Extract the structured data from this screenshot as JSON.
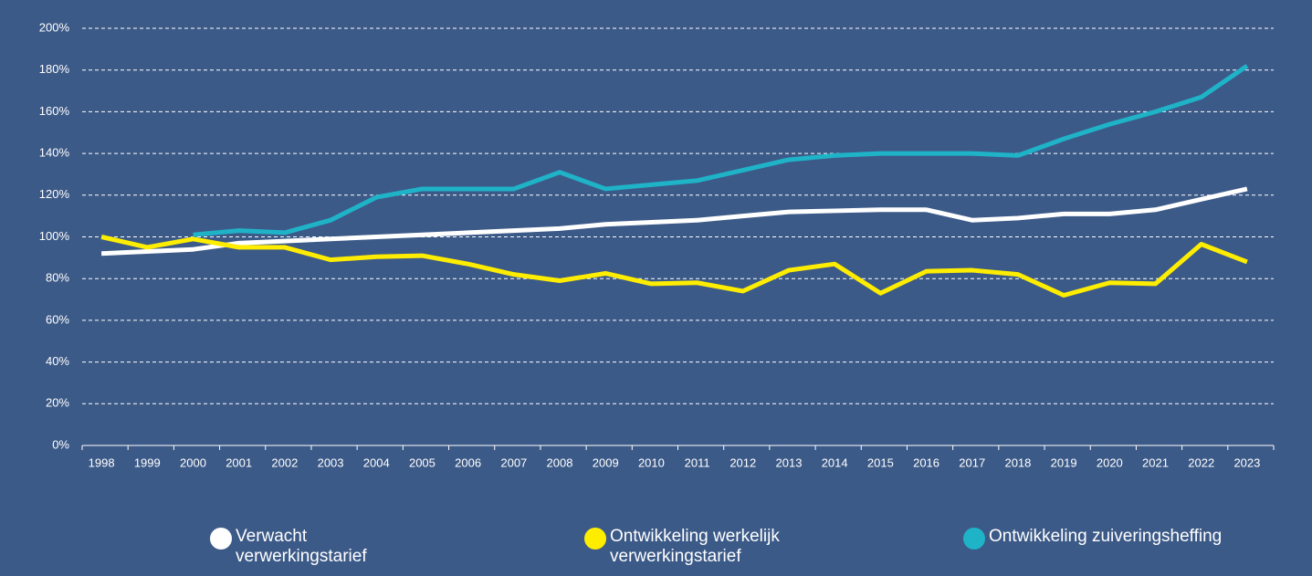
{
  "chart_data": {
    "type": "line",
    "categories": [
      "1998",
      "1999",
      "2000",
      "2001",
      "2002",
      "2003",
      "2004",
      "2005",
      "2006",
      "2007",
      "2008",
      "2009",
      "2010",
      "2011",
      "2012",
      "2013",
      "2014",
      "2015",
      "2016",
      "2017",
      "2018",
      "2019",
      "2020",
      "2021",
      "2022",
      "2023"
    ],
    "series": [
      {
        "name": "Verwacht verwerkingstarief",
        "color": "#ffffff",
        "values": [
          92,
          93,
          94,
          97,
          98,
          99,
          100,
          101,
          102,
          103,
          104,
          106,
          107,
          108,
          110,
          112,
          112.5,
          113,
          113,
          108,
          109,
          111,
          111,
          113,
          118,
          123
        ]
      },
      {
        "name": "Ontwikkeling werkelijk verwerkingstarief",
        "color": "#ffed00",
        "values": [
          100,
          95,
          99,
          95,
          95,
          89,
          90.5,
          91,
          87,
          82,
          79,
          82.5,
          77.5,
          78,
          74,
          84,
          87,
          73,
          83.5,
          84,
          82,
          72,
          78,
          77.5,
          96.5,
          88
        ]
      },
      {
        "name": "Ontwikkeling zuiveringsheffing",
        "color": "#1fb3c8",
        "values": [
          null,
          null,
          101,
          103,
          102,
          108,
          119,
          123,
          123,
          123,
          131,
          123,
          125,
          127,
          132,
          137,
          139,
          140,
          140,
          140,
          139,
          147,
          154,
          160,
          167,
          182
        ]
      }
    ],
    "ylim": [
      0,
      200
    ],
    "yticks": [
      {
        "value": 0,
        "label": "0%"
      },
      {
        "value": 20,
        "label": "20%"
      },
      {
        "value": 40,
        "label": "40%"
      },
      {
        "value": 60,
        "label": "60%"
      },
      {
        "value": 80,
        "label": "80%"
      },
      {
        "value": 100,
        "label": "100%"
      },
      {
        "value": 120,
        "label": "120%"
      },
      {
        "value": 140,
        "label": "140%"
      },
      {
        "value": 160,
        "label": "160%"
      },
      {
        "value": 180,
        "label": "180%"
      },
      {
        "value": 200,
        "label": "200%"
      }
    ],
    "grid": true
  }
}
